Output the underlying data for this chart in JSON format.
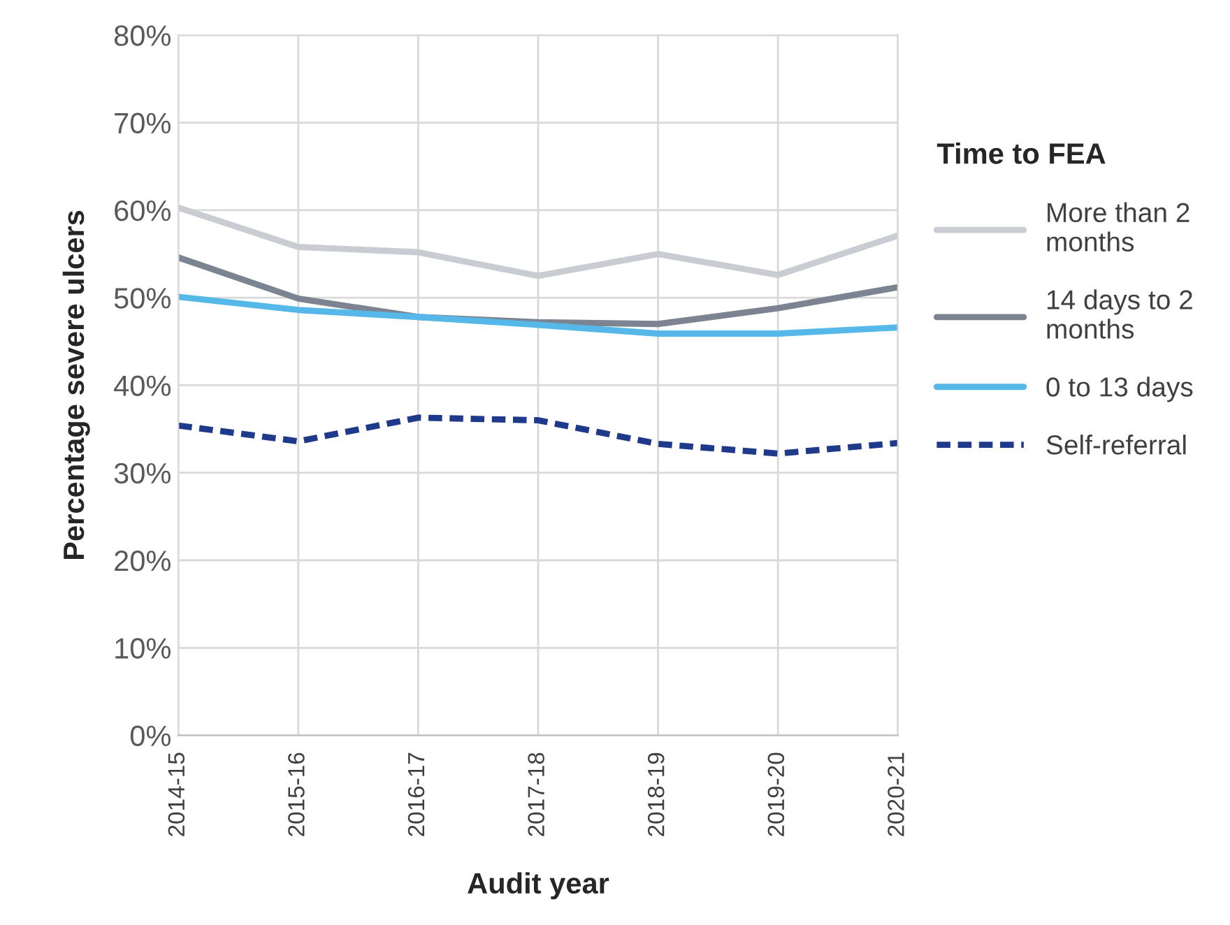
{
  "chart_data": {
    "type": "line",
    "xlabel": "Audit year",
    "ylabel": "Percentage severe ulcers",
    "legend_title": "Time to FEA",
    "categories": [
      "2014-15",
      "2015-16",
      "2016-17",
      "2017-18",
      "2018-19",
      "2019-20",
      "2020-21"
    ],
    "series": [
      {
        "name": "More than 2 months",
        "color": "#c9cdd3",
        "values": [
          60.3,
          55.8,
          55.2,
          52.5,
          55.0,
          52.6,
          57.1
        ]
      },
      {
        "name": "14 days to 2 months",
        "color": "#7b8490",
        "values": [
          54.6,
          49.9,
          47.8,
          47.2,
          47.0,
          48.8,
          51.2
        ]
      },
      {
        "name": "0 to 13 days",
        "color": "#55b8e8",
        "values": [
          50.1,
          48.6,
          47.8,
          46.9,
          45.9,
          45.9,
          46.6
        ]
      },
      {
        "name": "Self-referral",
        "color": "#1f3a8a",
        "line_style": "dashed",
        "values": [
          35.4,
          33.6,
          36.3,
          36.0,
          33.3,
          32.2,
          33.4
        ]
      }
    ],
    "ylim": [
      0,
      80
    ],
    "yticks": [
      {
        "value": 0,
        "label": "0%"
      },
      {
        "value": 10,
        "label": "10%"
      },
      {
        "value": 20,
        "label": "20%"
      },
      {
        "value": 30,
        "label": "30%"
      },
      {
        "value": 40,
        "label": "40%"
      },
      {
        "value": 50,
        "label": "50%"
      },
      {
        "value": 60,
        "label": "60%"
      },
      {
        "value": 70,
        "label": "70%"
      },
      {
        "value": 80,
        "label": "80%"
      }
    ],
    "grid": true,
    "legend": "right",
    "marker": "none"
  }
}
